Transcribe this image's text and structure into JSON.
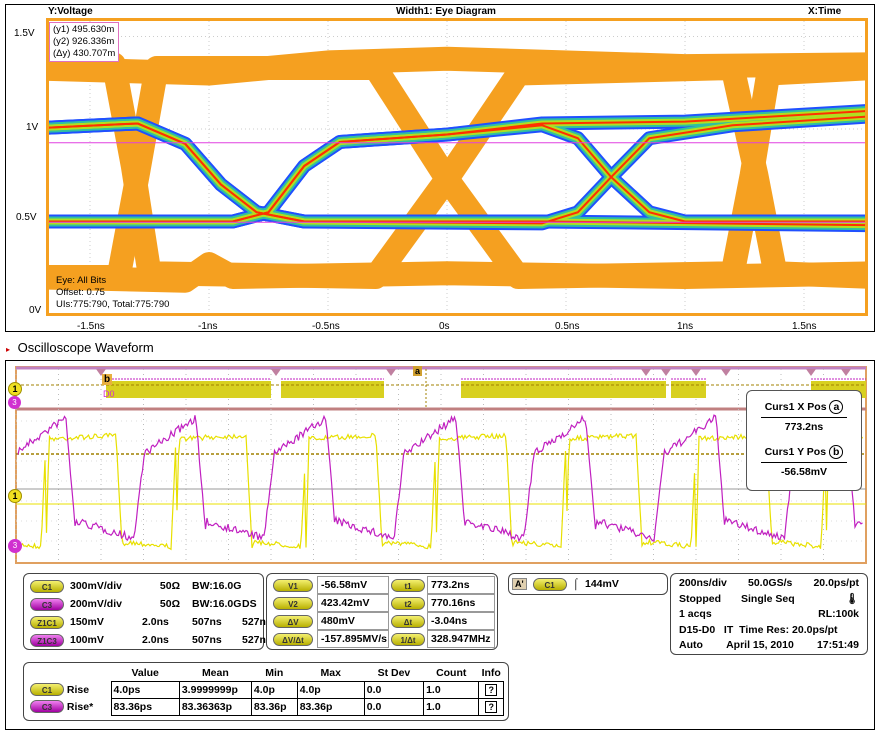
{
  "eye": {
    "ylabel": "Y:Voltage",
    "title": "Width1: Eye Diagram",
    "xlabel": "X:Time",
    "yticks": [
      "1.5V",
      "1V",
      "0.5V",
      "0V"
    ],
    "xticks": [
      "-1.5ns",
      "-1ns",
      "-0.5ns",
      "0s",
      "0.5ns",
      "1ns",
      "1.5ns"
    ],
    "cursors": {
      "y1": "(y1) 495.630m",
      "y2": "(y2) 926.336m",
      "dy": "(Δy) 430.707m"
    },
    "info": [
      "Eye: All Bits",
      "Offset: 0.75",
      "UIs:775:790, Total:775:790"
    ],
    "colors": {
      "eye_trace": "#f5a020",
      "cursor": "#e040e0"
    }
  },
  "section_title": "Oscilloscope Waveform",
  "scope": {
    "markers": {
      "ch1": "1",
      "ch3": "3",
      "a": "a",
      "b": "b",
      "d": "D0"
    },
    "readout": {
      "x_label": "Curs1 X Pos",
      "x_icon": "a",
      "x_value": "773.2ns",
      "y_label": "Curs1 Y Pos",
      "y_icon": "b",
      "y_value": "-56.58mV"
    },
    "channels": [
      {
        "badge": "C1",
        "scale": "300mV/div",
        "imp": "50Ω",
        "bw": "BW:16.0G",
        "extra": ""
      },
      {
        "badge": "C3",
        "scale": "200mV/div",
        "imp": "50Ω",
        "bw": "BW:16.0G",
        "extra": "DS"
      },
      {
        "badge": "Z1C1",
        "scale": "150mV",
        "imp": "2.0ns",
        "bw": "507ns",
        "extra": "527ns"
      },
      {
        "badge": "Z1C3",
        "scale": "100mV",
        "imp": "2.0ns",
        "bw": "507ns",
        "extra": "527ns"
      }
    ],
    "cursors": [
      {
        "badge": "V1",
        "value": "-56.58mV",
        "badge2": "t1",
        "value2": "773.2ns"
      },
      {
        "badge": "V2",
        "value": "423.42mV",
        "badge2": "t2",
        "value2": "770.16ns"
      },
      {
        "badge": "ΔV",
        "value": "480mV",
        "badge2": "Δt",
        "value2": "-3.04ns"
      },
      {
        "badge": "ΔV/Δt",
        "value": "-157.895MV/s",
        "badge2": "1/Δt",
        "value2": "328.947MHz"
      }
    ],
    "trigger": {
      "mode": "A'",
      "source": "C1",
      "level": "144mV"
    },
    "horizontal": {
      "l1a": "200ns/div",
      "l1b": "50.0GS/s",
      "l1c": "20.0ps/pt",
      "l2a": "Stopped",
      "l2b": "Single Seq",
      "l3a": "1 acqs",
      "l3b": "RL:100k",
      "l4": "D15-D0   IT  Time Res: 20.0ps/pt",
      "l5a": "Auto",
      "l5b": "April 15, 2010",
      "l5c": "17:51:49"
    },
    "measurements": {
      "headers": [
        "Value",
        "Mean",
        "Min",
        "Max",
        "St Dev",
        "Count",
        "Info"
      ],
      "rows": [
        {
          "badge": "C1",
          "name": "Rise",
          "cells": [
            "4.0ps",
            "3.9999999p",
            "4.0p",
            "4.0p",
            "0.0",
            "1.0"
          ]
        },
        {
          "badge": "C3",
          "name": "Rise*",
          "cells": [
            "83.36ps",
            "83.36363p",
            "83.36p",
            "83.36p",
            "0.0",
            "1.0"
          ]
        }
      ]
    },
    "colors": {
      "c1": "#e8e000",
      "c3": "#c020c0"
    }
  }
}
